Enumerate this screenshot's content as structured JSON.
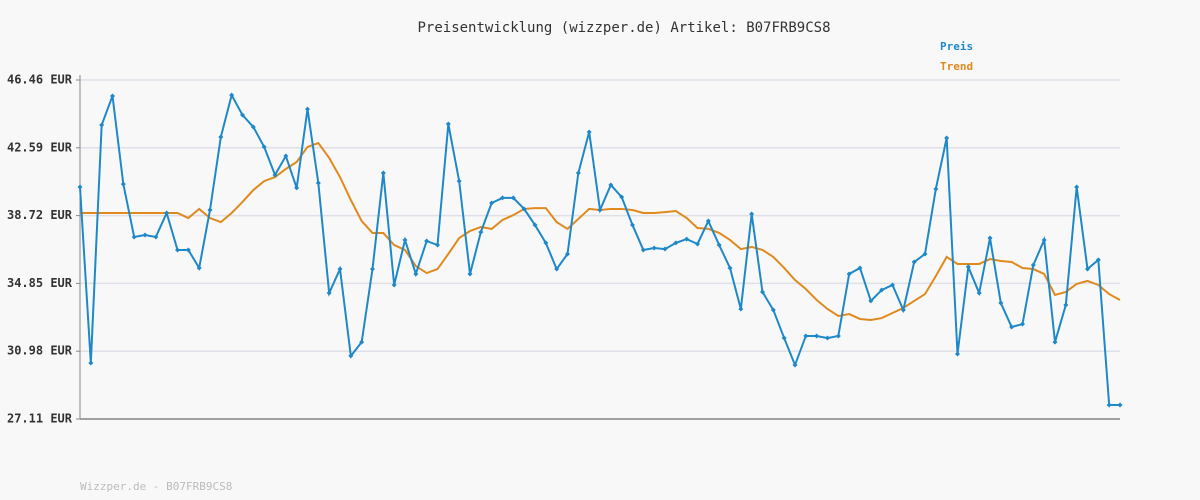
{
  "chart_data": {
    "type": "line",
    "title": "Preisentwicklung (wizzper.de) Artikel: B07FRB9CS8",
    "footer": "Wizzper.de - B07FRB9CS8",
    "ylim": [
      27.11,
      46.46
    ],
    "yticks": [
      {
        "value": 27.11,
        "label": "27.11 EUR"
      },
      {
        "value": 30.98,
        "label": "30.98 EUR"
      },
      {
        "value": 34.85,
        "label": "34.85 EUR"
      },
      {
        "value": 38.72,
        "label": "38.72 EUR"
      },
      {
        "value": 42.59,
        "label": "42.59 EUR"
      },
      {
        "value": 46.46,
        "label": "46.46 EUR"
      }
    ],
    "grid": true,
    "series": [
      {
        "name": "Preis",
        "color": "#1f88c8",
        "values": [
          40.35,
          30.31,
          43.89,
          45.55,
          40.52,
          37.5,
          37.61,
          37.5,
          38.87,
          36.76,
          36.76,
          35.73,
          39.04,
          43.21,
          45.6,
          44.46,
          43.78,
          42.64,
          41.04,
          42.12,
          40.3,
          44.8,
          40.58,
          34.3,
          35.67,
          30.71,
          31.5,
          35.67,
          41.15,
          34.76,
          37.33,
          35.39,
          37.27,
          37.04,
          43.95,
          40.69,
          35.39,
          37.78,
          39.44,
          39.73,
          39.73,
          39.1,
          38.18,
          37.16,
          35.67,
          36.53,
          41.15,
          43.49,
          39.04,
          40.47,
          39.78,
          38.18,
          36.76,
          36.87,
          36.81,
          37.16,
          37.38,
          37.1,
          38.41,
          37.04,
          35.73,
          33.39,
          38.81,
          34.36,
          33.33,
          31.73,
          30.19,
          31.85,
          31.85,
          31.73,
          31.85,
          35.39,
          35.73,
          33.85,
          34.47,
          34.76,
          33.33,
          36.07,
          36.53,
          40.24,
          43.15,
          30.82,
          35.79,
          34.3,
          37.44,
          33.73,
          32.36,
          32.53,
          35.9,
          37.33,
          31.5,
          33.62,
          40.35,
          35.67,
          36.19,
          27.91,
          27.91
        ]
      },
      {
        "name": "Trend",
        "color": "#e08a1e",
        "values": [
          38.87,
          38.87,
          38.87,
          38.87,
          38.87,
          38.87,
          38.87,
          38.87,
          38.87,
          38.87,
          38.58,
          39.1,
          38.58,
          38.35,
          38.87,
          39.5,
          40.18,
          40.69,
          40.92,
          41.38,
          41.78,
          42.64,
          42.86,
          42.01,
          40.92,
          39.61,
          38.41,
          37.73,
          37.73,
          37.04,
          36.76,
          35.84,
          35.44,
          35.67,
          36.53,
          37.44,
          37.84,
          38.07,
          37.96,
          38.47,
          38.75,
          39.1,
          39.15,
          39.15,
          38.35,
          37.96,
          38.53,
          39.1,
          39.04,
          39.1,
          39.1,
          39.04,
          38.87,
          38.87,
          38.92,
          38.98,
          38.58,
          38.01,
          37.96,
          37.73,
          37.33,
          36.81,
          36.93,
          36.76,
          36.36,
          35.73,
          35.04,
          34.53,
          33.9,
          33.39,
          32.99,
          33.1,
          32.82,
          32.76,
          32.87,
          33.16,
          33.45,
          33.85,
          34.24,
          35.27,
          36.36,
          35.96,
          35.96,
          35.96,
          36.24,
          36.13,
          36.07,
          35.73,
          35.67,
          35.39,
          34.19,
          34.36,
          34.82,
          34.99,
          34.76,
          34.24,
          33.9
        ]
      }
    ]
  }
}
